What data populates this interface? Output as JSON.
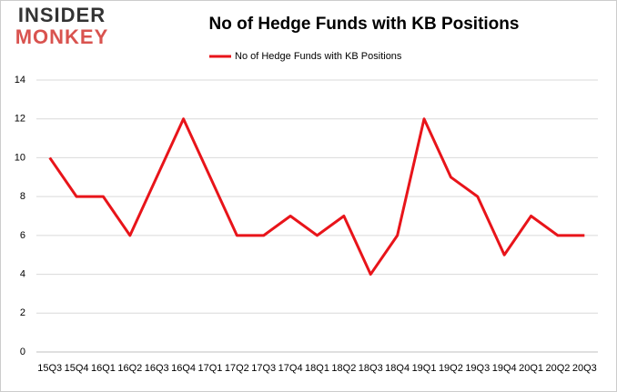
{
  "logo": {
    "line1": "INSIDER",
    "line2": "MONKEY"
  },
  "chart_data": {
    "type": "line",
    "title": "No of Hedge Funds with KB Positions",
    "categories": [
      "15Q3",
      "15Q4",
      "16Q1",
      "16Q2",
      "16Q3",
      "16Q4",
      "17Q1",
      "17Q2",
      "17Q3",
      "17Q4",
      "18Q1",
      "18Q2",
      "18Q3",
      "18Q4",
      "19Q1",
      "19Q2",
      "19Q3",
      "19Q4",
      "20Q1",
      "20Q2",
      "20Q3"
    ],
    "series": [
      {
        "name": "No of Hedge Funds with KB Positions",
        "color": "#e8141a",
        "values": [
          10,
          8,
          8,
          6,
          9,
          12,
          9,
          6,
          6,
          7,
          6,
          7,
          4,
          6,
          12,
          9,
          8,
          5,
          7,
          6,
          6
        ]
      }
    ],
    "ylim": [
      0,
      14
    ],
    "yticks": [
      0,
      2,
      4,
      6,
      8,
      10,
      12,
      14
    ],
    "grid": true,
    "legend": "top"
  }
}
